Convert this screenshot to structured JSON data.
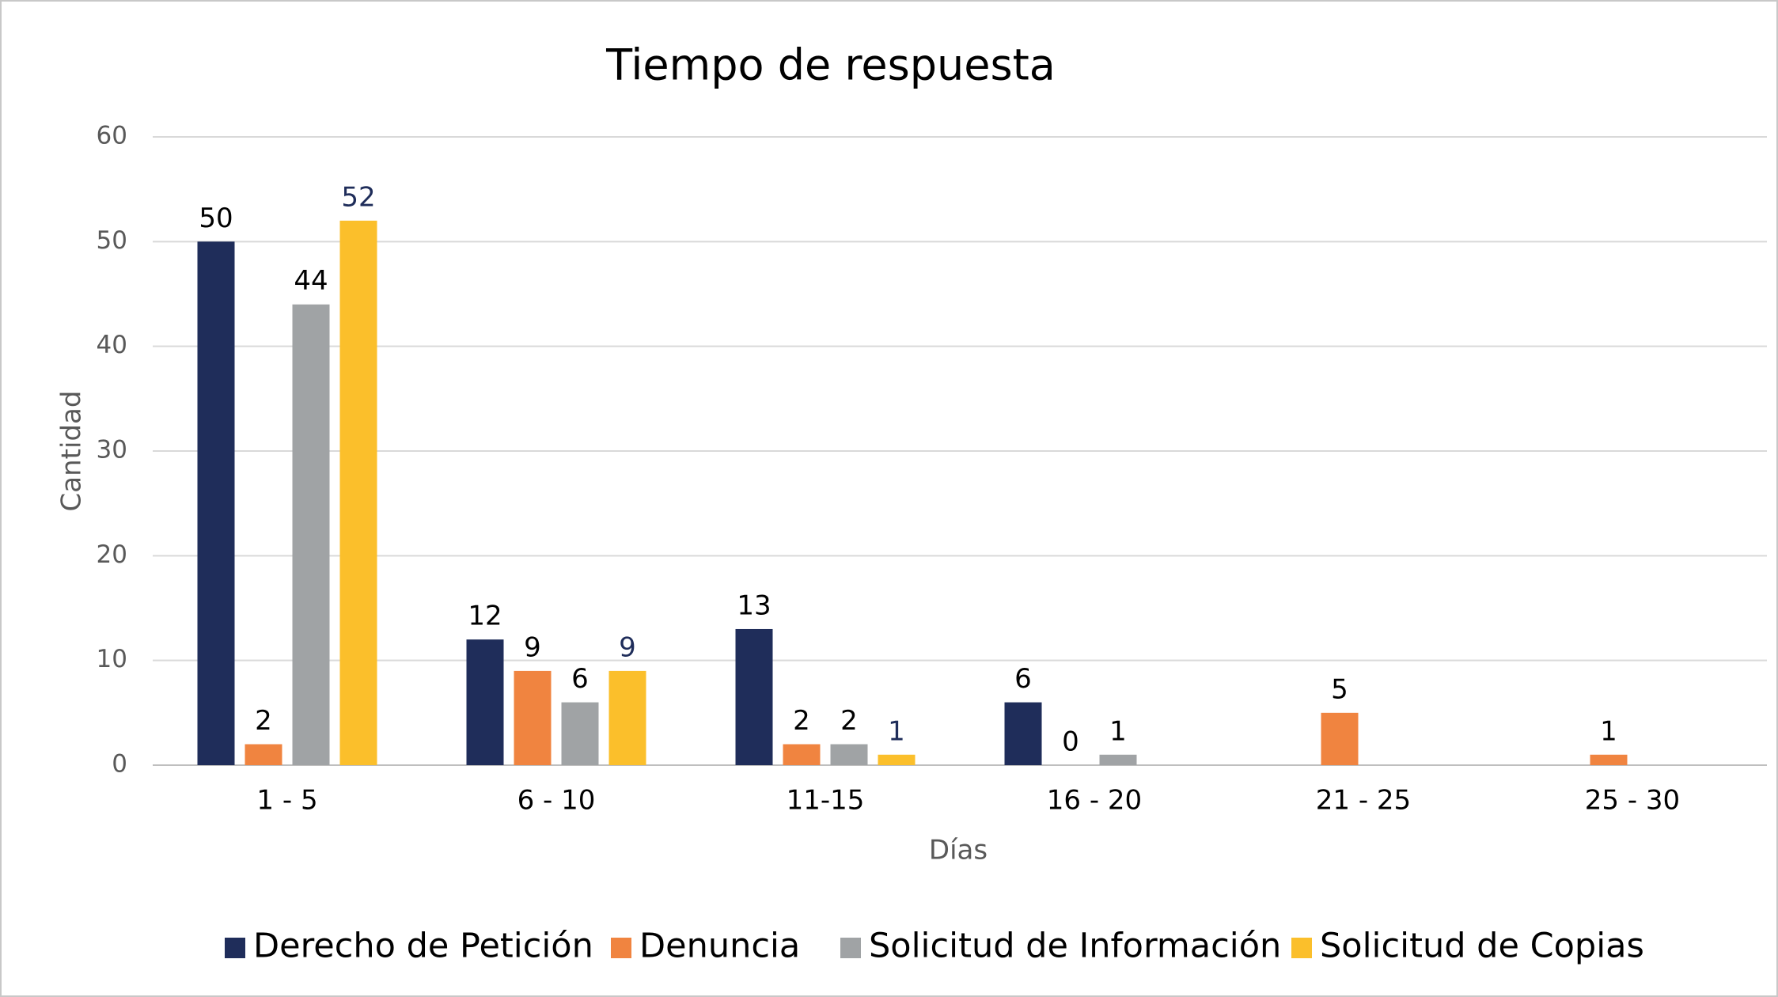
{
  "chart_data": {
    "type": "bar",
    "title": "Tiempo de respuesta",
    "x_label": "Días",
    "y_label": "Cantidad",
    "categories": [
      "1 - 5",
      "6 - 10",
      "11-15",
      "16 - 20",
      "21 - 25",
      "25 - 30"
    ],
    "series": [
      {
        "name": "Derecho de Petición",
        "color": "#1f2d5a",
        "label_color": "#000000",
        "values": [
          50,
          12,
          13,
          6,
          null,
          null
        ]
      },
      {
        "name": "Denuncia",
        "color": "#f08440",
        "label_color": "#000000",
        "values": [
          2,
          9,
          2,
          0,
          5,
          1
        ]
      },
      {
        "name": "Solicitud de Información",
        "color": "#a0a3a5",
        "label_color": "#000000",
        "values": [
          44,
          6,
          2,
          1,
          null,
          null
        ]
      },
      {
        "name": "Solicitud de Copias",
        "color": "#fbbf2b",
        "label_color": "#1f2d5a",
        "values": [
          52,
          9,
          1,
          null,
          null,
          null
        ]
      }
    ],
    "ylim": [
      0,
      60
    ],
    "yticks": [
      0,
      10,
      20,
      30,
      40,
      50,
      60
    ],
    "grid": true,
    "legend": "bottom"
  }
}
